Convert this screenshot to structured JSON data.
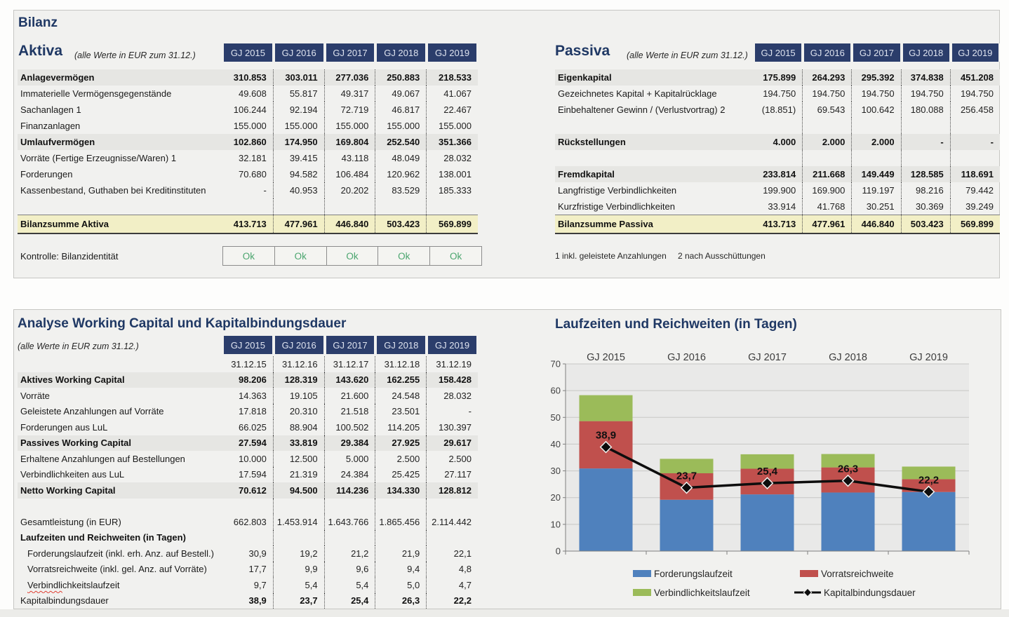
{
  "bilanz": {
    "title": "Bilanz",
    "aktiva": {
      "title": "Aktiva",
      "note": "(alle Werte in EUR zum 31.12.)",
      "years": [
        "GJ 2015",
        "GJ 2016",
        "GJ 2017",
        "GJ 2018",
        "GJ 2019"
      ],
      "rows": [
        {
          "label": "Anlagevermögen",
          "values": [
            "310.853",
            "303.011",
            "277.036",
            "250.883",
            "218.533"
          ],
          "style": "section"
        },
        {
          "label": "Immaterielle Vermögensgegenstände",
          "values": [
            "49.608",
            "55.817",
            "49.317",
            "49.067",
            "41.067"
          ]
        },
        {
          "label": "Sachanlagen  1",
          "values": [
            "106.244",
            "92.194",
            "72.719",
            "46.817",
            "22.467"
          ]
        },
        {
          "label": "Finanzanlagen",
          "values": [
            "155.000",
            "155.000",
            "155.000",
            "155.000",
            "155.000"
          ]
        },
        {
          "label": "Umlaufvermögen",
          "values": [
            "102.860",
            "174.950",
            "169.804",
            "252.540",
            "351.366"
          ],
          "style": "section"
        },
        {
          "label": "Vorräte (Fertige Erzeugnisse/Waren) 1",
          "values": [
            "32.181",
            "39.415",
            "43.118",
            "48.049",
            "28.032"
          ]
        },
        {
          "label": "Forderungen",
          "values": [
            "70.680",
            "94.582",
            "106.484",
            "120.962",
            "138.001"
          ]
        },
        {
          "label": "Kassenbestand, Guthaben bei Kreditinstituten",
          "values": [
            "-",
            "40.953",
            "20.202",
            "83.529",
            "185.333"
          ]
        },
        {
          "label": "",
          "style": "spacer"
        },
        {
          "label": "Bilanzsumme Aktiva",
          "values": [
            "413.713",
            "477.961",
            "446.840",
            "503.423",
            "569.899"
          ],
          "style": "total"
        }
      ],
      "kontrolle": {
        "label": "Kontrolle: Bilanzidentität",
        "values": [
          "Ok",
          "Ok",
          "Ok",
          "Ok",
          "Ok"
        ]
      }
    },
    "passiva": {
      "title": "Passiva",
      "note": "(alle Werte in EUR zum 31.12.)",
      "years": [
        "GJ 2015",
        "GJ 2016",
        "GJ 2017",
        "GJ 2018",
        "GJ 2019"
      ],
      "rows": [
        {
          "label": "Eigenkapital",
          "values": [
            "175.899",
            "264.293",
            "295.392",
            "374.838",
            "451.208"
          ],
          "style": "section"
        },
        {
          "label": "Gezeichnetes Kapital + Kapitalrücklage",
          "values": [
            "194.750",
            "194.750",
            "194.750",
            "194.750",
            "194.750"
          ]
        },
        {
          "label": "Einbehaltener Gewinn / (Verlustvortrag)  2",
          "values": [
            "(18.851)",
            "69.543",
            "100.642",
            "180.088",
            "256.458"
          ]
        },
        {
          "label": "",
          "style": "spacer"
        },
        {
          "label": "Rückstellungen",
          "values": [
            "4.000",
            "2.000",
            "2.000",
            "-",
            "-"
          ],
          "style": "section"
        },
        {
          "label": "",
          "style": "spacer"
        },
        {
          "label": "Fremdkapital",
          "values": [
            "233.814",
            "211.668",
            "149.449",
            "128.585",
            "118.691"
          ],
          "style": "section"
        },
        {
          "label": "Langfristige Verbindlichkeiten",
          "values": [
            "199.900",
            "169.900",
            "119.197",
            "98.216",
            "79.442"
          ]
        },
        {
          "label": "Kurzfristige Verbindlichkeiten",
          "values": [
            "33.914",
            "41.768",
            "30.251",
            "30.369",
            "39.249"
          ]
        },
        {
          "label": "Bilanzsumme Passiva",
          "values": [
            "413.713",
            "477.961",
            "446.840",
            "503.423",
            "569.899"
          ],
          "style": "total"
        }
      ],
      "footnotes": [
        "1 inkl. geleistete Anzahlungen",
        "2 nach Ausschüttungen"
      ]
    }
  },
  "working_capital": {
    "title": "Analyse Working Capital und Kapitalbindungsdauer",
    "note": "(alle Werte in EUR zum 31.12.)",
    "years": [
      "GJ 2015",
      "GJ 2016",
      "GJ 2017",
      "GJ 2018",
      "GJ 2019"
    ],
    "rows": [
      {
        "label": "",
        "values": [
          "31.12.15",
          "31.12.16",
          "31.12.17",
          "31.12.18",
          "31.12.19"
        ],
        "style": "dates"
      },
      {
        "label": "Aktives Working Capital",
        "values": [
          "98.206",
          "128.319",
          "143.620",
          "162.255",
          "158.428"
        ],
        "style": "section"
      },
      {
        "label": "Vorräte",
        "values": [
          "14.363",
          "19.105",
          "21.600",
          "24.548",
          "28.032"
        ]
      },
      {
        "label": "Geleistete Anzahlungen auf Vorräte",
        "values": [
          "17.818",
          "20.310",
          "21.518",
          "23.501",
          "-"
        ]
      },
      {
        "label": "Forderungen aus LuL",
        "values": [
          "66.025",
          "88.904",
          "100.502",
          "114.205",
          "130.397"
        ]
      },
      {
        "label": "Passives Working Capital",
        "values": [
          "27.594",
          "33.819",
          "29.384",
          "27.925",
          "29.617"
        ],
        "style": "section"
      },
      {
        "label": "Erhaltene Anzahlungen auf Bestellungen",
        "values": [
          "10.000",
          "12.500",
          "5.000",
          "2.500",
          "2.500"
        ]
      },
      {
        "label": "Verbindlichkeiten aus LuL",
        "values": [
          "17.594",
          "21.319",
          "24.384",
          "25.425",
          "27.117"
        ]
      },
      {
        "label": "Netto Working Capital",
        "values": [
          "70.612",
          "94.500",
          "114.236",
          "134.330",
          "128.812"
        ],
        "style": "section"
      },
      {
        "label": "",
        "style": "spacer"
      },
      {
        "label": "Gesamtleistung (in EUR)",
        "values": [
          "662.803",
          "1.453.914",
          "1.643.766",
          "1.865.456",
          "2.114.442"
        ]
      },
      {
        "label": "Laufzeiten und Reichweiten (in Tagen)",
        "values": [
          "",
          "",
          "",
          "",
          ""
        ],
        "style": "subhead"
      },
      {
        "label": "Forderungslaufzeit (inkl. erh. Anz. auf Bestell.)",
        "values": [
          "30,9",
          "19,2",
          "21,2",
          "21,9",
          "22,1"
        ],
        "style": "indent"
      },
      {
        "label": "Vorratsreichweite (inkl. gel. Anz. auf Vorräte)",
        "values": [
          "17,7",
          "9,9",
          "9,6",
          "9,4",
          "4,8"
        ],
        "style": "indent"
      },
      {
        "label": "Verbindlichkeitslaufzeit",
        "values": [
          "9,7",
          "5,4",
          "5,4",
          "5,0",
          "4,7"
        ],
        "style": "indent",
        "spell": 9
      },
      {
        "label": "Kapitalbindungsdauer",
        "values": [
          "38,9",
          "23,7",
          "25,4",
          "26,3",
          "22,2"
        ],
        "style": "boldvals"
      }
    ]
  },
  "chart_data": {
    "type": "bar",
    "stacked": true,
    "title": "Laufzeiten und Reichweiten (in Tagen)",
    "categories": [
      "GJ 2015",
      "GJ 2016",
      "GJ 2017",
      "GJ 2018",
      "GJ 2019"
    ],
    "series": [
      {
        "name": "Forderungslaufzeit",
        "kind": "bar",
        "color": "#4f81bd",
        "values": [
          30.9,
          19.2,
          21.2,
          21.9,
          22.1
        ]
      },
      {
        "name": "Vorratsreichweite",
        "kind": "bar",
        "color": "#c0504d",
        "values": [
          17.7,
          9.9,
          9.6,
          9.4,
          4.8
        ]
      },
      {
        "name": "Verbindlichkeitslaufzeit",
        "kind": "bar",
        "color": "#9bbb59",
        "values": [
          9.7,
          5.4,
          5.4,
          5.0,
          4.7
        ]
      },
      {
        "name": "Kapitalbindungsdauer",
        "kind": "line",
        "color": "#0d0d0d",
        "values": [
          38.9,
          23.7,
          25.4,
          26.3,
          22.2
        ],
        "labels": [
          "38,9",
          "23,7",
          "25,4",
          "26,3",
          "22,2"
        ]
      }
    ],
    "ylim": [
      0,
      70
    ],
    "ytick": 10,
    "grid": true,
    "legend_position": "bottom",
    "plot_bg": "#e9e9e8",
    "grid_color": "#c7c7c5",
    "axis_color": "#7f7f7f"
  }
}
